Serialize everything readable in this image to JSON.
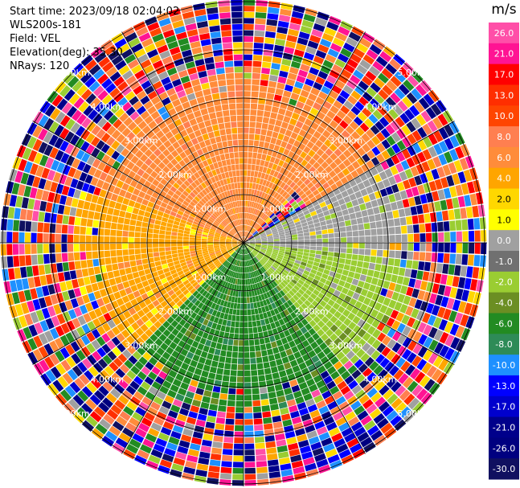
{
  "header": {
    "start_time": "Start time: 2023/09/18 02:04:02",
    "instrument": "WLS200s-181",
    "field": "Field: VEL",
    "elevation": "Elevation(deg): 35.30",
    "nrays": "NRays: 120"
  },
  "colorbar": {
    "unit": "m/s",
    "ticks": [
      "26.0",
      "21.0",
      "17.0",
      "13.0",
      "10.0",
      "8.0",
      "6.0",
      "4.0",
      "2.0",
      "1.0",
      "0.0",
      "-1.0",
      "-2.0",
      "-4.0",
      "-6.0",
      "-8.0",
      "-10.0",
      "-13.0",
      "-17.0",
      "-21.0",
      "-26.0",
      "-30.0"
    ],
    "colors": [
      "#ff4fa8",
      "#ff1493",
      "#ff0000",
      "#ff2e00",
      "#ff4500",
      "#ff7f50",
      "#ff8c3a",
      "#ffa500",
      "#ffd700",
      "#ffff00",
      "#a0a0a0",
      "#707070",
      "#9acd32",
      "#6b8e23",
      "#228b22",
      "#2e8b57",
      "#1e90ff",
      "#0000ff",
      "#0000cd",
      "#00008b",
      "#000080",
      "#101060"
    ]
  },
  "range_labels": [
    "1.00km",
    "2.00km",
    "3.00km",
    "4.00km",
    "5.00km"
  ],
  "chart_data": {
    "type": "ppi",
    "field": "VEL",
    "nrays": 120,
    "elevation_deg": 35.3,
    "range_rings_km": [
      1,
      2,
      3,
      4,
      5
    ],
    "spoke_azimuths_deg": [
      0,
      30,
      60,
      90,
      120,
      150,
      180,
      210,
      240,
      270,
      300,
      330
    ],
    "colorbar_unit": "m/s",
    "colorbar_range": [
      -30,
      26
    ],
    "approximate_velocity_pattern": [
      {
        "azimuth_sector_deg": [
          290,
          45
        ],
        "range_km": [
          0,
          1.5
        ],
        "velocity_ms": 6
      },
      {
        "azimuth_sector_deg": [
          290,
          60
        ],
        "range_km": [
          1.5,
          3.5
        ],
        "velocity_ms": 5
      },
      {
        "azimuth_sector_deg": [
          225,
          290
        ],
        "range_km": [
          0,
          3.5
        ],
        "velocity_ms": 3
      },
      {
        "azimuth_sector_deg": [
          60,
          95
        ],
        "range_km": [
          0,
          3.5
        ],
        "velocity_ms": 0
      },
      {
        "azimuth_sector_deg": [
          95,
          140
        ],
        "range_km": [
          0,
          3.5
        ],
        "velocity_ms": -2
      },
      {
        "azimuth_sector_deg": [
          140,
          225
        ],
        "range_km": [
          0,
          3.5
        ],
        "velocity_ms": -6
      },
      {
        "azimuth_sector_deg": [
          0,
          360
        ],
        "range_km": [
          3.5,
          5.3
        ],
        "velocity_ms": "noise"
      }
    ]
  }
}
